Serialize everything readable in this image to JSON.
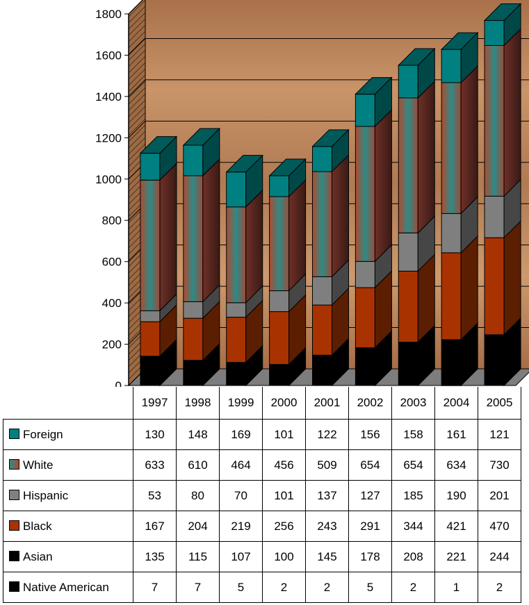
{
  "chart_data": {
    "type": "bar",
    "stacked": true,
    "three_d": true,
    "categories": [
      "1997",
      "1998",
      "1999",
      "2000",
      "2001",
      "2002",
      "2003",
      "2004",
      "2005"
    ],
    "y_ticks": [
      "0",
      "200",
      "400",
      "600",
      "800",
      "1000",
      "1200",
      "1400",
      "1600",
      "1800"
    ],
    "ylim": [
      0,
      1800
    ],
    "grid": true,
    "legend_placement": "table-below",
    "series": [
      {
        "name": "Native American",
        "color": "#000000",
        "values": [
          7,
          7,
          5,
          2,
          2,
          5,
          2,
          1,
          2
        ]
      },
      {
        "name": "Asian",
        "color": "#000000",
        "values": [
          135,
          115,
          107,
          100,
          145,
          178,
          208,
          221,
          244
        ]
      },
      {
        "name": "Black",
        "color": "#a83300",
        "values": [
          167,
          204,
          219,
          256,
          243,
          291,
          344,
          421,
          470
        ]
      },
      {
        "name": "Hispanic",
        "color": "#808080",
        "values": [
          53,
          80,
          70,
          101,
          137,
          127,
          185,
          190,
          201
        ]
      },
      {
        "name": "White",
        "color": "#a84a38",
        "values": [
          633,
          610,
          464,
          456,
          509,
          654,
          654,
          634,
          730
        ]
      },
      {
        "name": "Foreign",
        "color": "#008080",
        "values": [
          130,
          148,
          169,
          101,
          122,
          156,
          158,
          161,
          121
        ]
      }
    ],
    "table_row_order": [
      "Foreign",
      "White",
      "Hispanic",
      "Black",
      "Asian",
      "Native American"
    ]
  }
}
